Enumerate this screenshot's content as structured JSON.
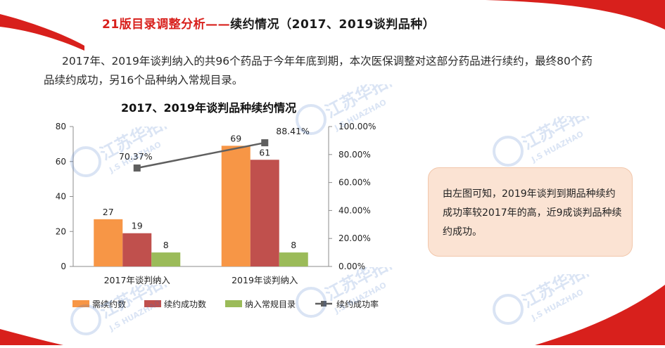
{
  "slide": {
    "title_highlight": "21版目录调整分析——",
    "title_rest": "续约情况（2017、2019谈判品种）",
    "intro_line1": "2017年、2019年谈判纳入的共96个药品于今年年底到期，本次医保调整对这部分药品进行续约，最终80个药",
    "intro_line2": "品续约成功，另16个品种纳入常规目录。",
    "callout_text": "由左图可知，2019年谈判到期品种续约成功率较2017年的高，近9成谈判品种续约成功。"
  },
  "watermark": {
    "text_cn": "江苏华招网",
    "text_en": "J.S HUAZHAO"
  },
  "colors": {
    "accent_red": "#d8201c",
    "series_1": "#f79646",
    "series_2": "#c0504d",
    "series_3": "#9bbb59",
    "line": "#5f5f5f",
    "callout_bg": "#fbe3d3"
  },
  "chart_data": {
    "type": "bar",
    "title": "2017、2019年谈判品种续约情况",
    "categories": [
      "2017年谈判纳入",
      "2019年谈判纳入"
    ],
    "series": [
      {
        "name": "需续约数",
        "values": [
          27,
          69
        ],
        "labels": [
          "27",
          "69"
        ]
      },
      {
        "name": "续约成功数",
        "values": [
          19,
          61
        ],
        "labels": [
          "19",
          "61"
        ]
      },
      {
        "name": "纳入常规目录",
        "values": [
          8,
          8
        ],
        "labels": [
          "8",
          "8"
        ]
      }
    ],
    "line_series": {
      "name": "续约成功率",
      "values": [
        70.37,
        88.41
      ],
      "labels": [
        "70.37%",
        "88.41%"
      ],
      "axis": "right"
    },
    "ylim": [
      0,
      80
    ],
    "y_ticks": [
      "0",
      "20",
      "40",
      "60",
      "80"
    ],
    "y2lim": [
      0,
      100
    ],
    "y2_ticks": [
      "0.00%",
      "20.00%",
      "40.00%",
      "60.00%",
      "80.00%",
      "100.00%"
    ],
    "grid": false,
    "legend_position": "bottom"
  }
}
